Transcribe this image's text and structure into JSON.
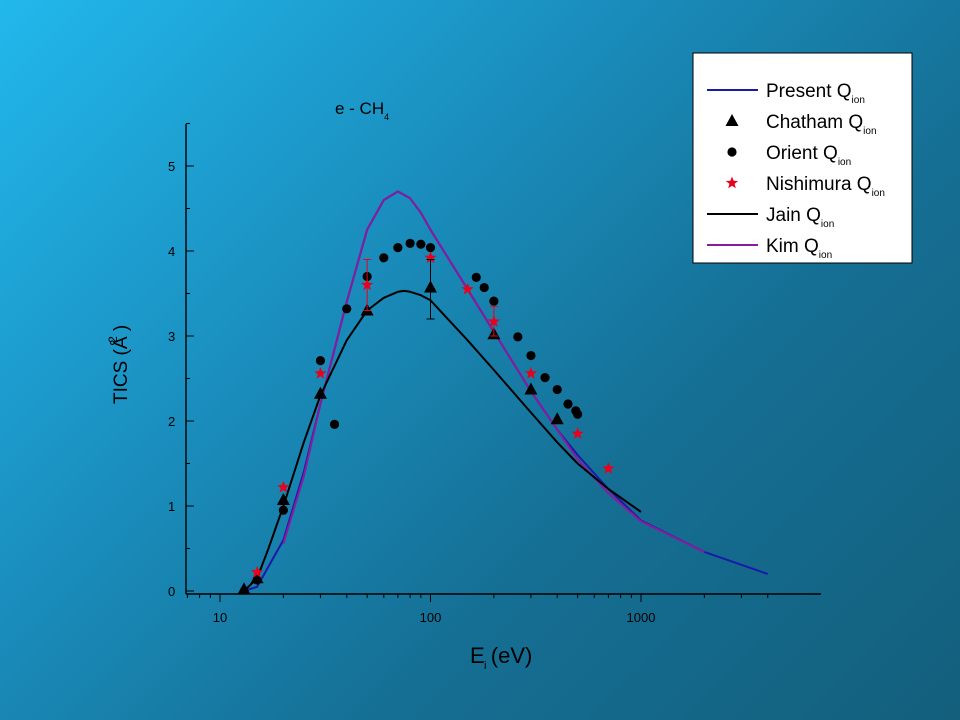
{
  "chart_data": {
    "type": "line",
    "title": "e - CH",
    "title_sub": "4",
    "ylabel": "TICS (Å  )",
    "ylabel_sup": "2",
    "xlabel": "E  (eV)",
    "xlabel_sub": "i",
    "xscale": "log",
    "xlim": [
      6.5,
      4000
    ],
    "ylim": [
      0,
      5.5
    ],
    "x_ticks": [
      10,
      100,
      1000
    ],
    "x_tick_labels": [
      "10",
      "100",
      "1000"
    ],
    "y_ticks": [
      0,
      1,
      2,
      3,
      4,
      5
    ],
    "y_tick_labels": [
      "0",
      "1",
      "2",
      "3",
      "4",
      "5"
    ],
    "grid": false,
    "legend_position": "top-right",
    "legend": [
      {
        "label": "Present Q",
        "sub": "ion",
        "marker": "line",
        "color": "#1a1aa8"
      },
      {
        "label": "Chatham Q",
        "sub": "ion",
        "marker": "triangle",
        "color": "#000000"
      },
      {
        "label": "Orient Q",
        "sub": "ion",
        "marker": "circle",
        "color": "#000000"
      },
      {
        "label": "Nishimura Q",
        "sub": "ion",
        "marker": "star",
        "color": "#e8001c"
      },
      {
        "label": "Jain Q",
        "sub": "ion",
        "marker": "line",
        "color": "#000000"
      },
      {
        "label": " Kim Q",
        "sub": "ion",
        "marker": "line",
        "color": "#8a1a9e"
      }
    ],
    "series": [
      {
        "name": "Present Q",
        "style": "line",
        "color": "#1a1aa8",
        "x": [
          13,
          15,
          20,
          25,
          30,
          40,
          50,
          60,
          70,
          80,
          90,
          100,
          150,
          200,
          300,
          400,
          500,
          700,
          1000,
          2000,
          4000
        ],
        "y": [
          0.0,
          0.05,
          0.6,
          1.4,
          2.2,
          3.4,
          4.25,
          4.6,
          4.7,
          4.62,
          4.45,
          4.25,
          3.55,
          3.05,
          2.35,
          1.9,
          1.6,
          1.2,
          0.83,
          0.46,
          0.2
        ]
      },
      {
        "name": "Kim Q",
        "style": "line",
        "color": "#8a1a9e",
        "x": [
          20,
          25,
          30,
          40,
          50,
          60,
          70,
          80,
          90,
          100,
          150,
          200,
          300,
          400,
          500,
          700,
          1000,
          2000
        ],
        "y": [
          0.56,
          1.35,
          2.2,
          3.4,
          4.25,
          4.6,
          4.7,
          4.62,
          4.45,
          4.25,
          3.55,
          3.05,
          2.35,
          1.9,
          1.55,
          1.15,
          0.82,
          0.46
        ]
      },
      {
        "name": "Jain Q",
        "style": "line",
        "color": "#000000",
        "x": [
          13,
          15,
          17,
          20,
          25,
          30,
          40,
          50,
          60,
          70,
          75,
          80,
          90,
          100,
          150,
          200,
          300,
          400,
          500,
          700,
          1000
        ],
        "y": [
          0.0,
          0.15,
          0.5,
          1.0,
          1.75,
          2.3,
          2.95,
          3.3,
          3.45,
          3.52,
          3.53,
          3.52,
          3.48,
          3.42,
          2.95,
          2.6,
          2.1,
          1.75,
          1.5,
          1.2,
          0.93
        ]
      },
      {
        "name": "Chatham Q",
        "style": "triangle",
        "color": "#000000",
        "x": [
          13,
          15,
          20,
          30,
          50,
          100,
          200,
          300,
          400
        ],
        "y": [
          0.02,
          0.15,
          1.07,
          2.32,
          3.3,
          3.57,
          3.02,
          2.37,
          2.02
        ]
      },
      {
        "name": "Orient Q",
        "style": "circle",
        "color": "#000000",
        "x": [
          15,
          20,
          30,
          35,
          40,
          50,
          60,
          70,
          80,
          90,
          100,
          165,
          180,
          200,
          260,
          300,
          350,
          400,
          450,
          490,
          500
        ],
        "y": [
          0.13,
          0.95,
          2.71,
          1.96,
          3.32,
          3.7,
          3.92,
          4.04,
          4.09,
          4.08,
          4.04,
          3.69,
          3.57,
          3.41,
          2.99,
          2.77,
          2.51,
          2.37,
          2.2,
          2.12,
          2.08
        ]
      },
      {
        "name": "Nishimura Q",
        "style": "star",
        "color": "#e8001c",
        "x": [
          15,
          20,
          30,
          50,
          100,
          150,
          200,
          300,
          500,
          700
        ],
        "y": [
          0.22,
          1.22,
          2.56,
          3.6,
          3.92,
          3.55,
          3.17,
          2.56,
          1.85,
          1.44
        ]
      }
    ],
    "error_bars": [
      {
        "x": 50,
        "y": 3.6,
        "low": 3.3,
        "high": 3.9,
        "color": "#e8001c"
      },
      {
        "x": 100,
        "y": 3.55,
        "low": 3.2,
        "high": 3.9,
        "color": "#000000"
      },
      {
        "x": 200,
        "y": 3.17,
        "low": 3.0,
        "high": 3.35,
        "color": "#e8001c"
      }
    ]
  }
}
